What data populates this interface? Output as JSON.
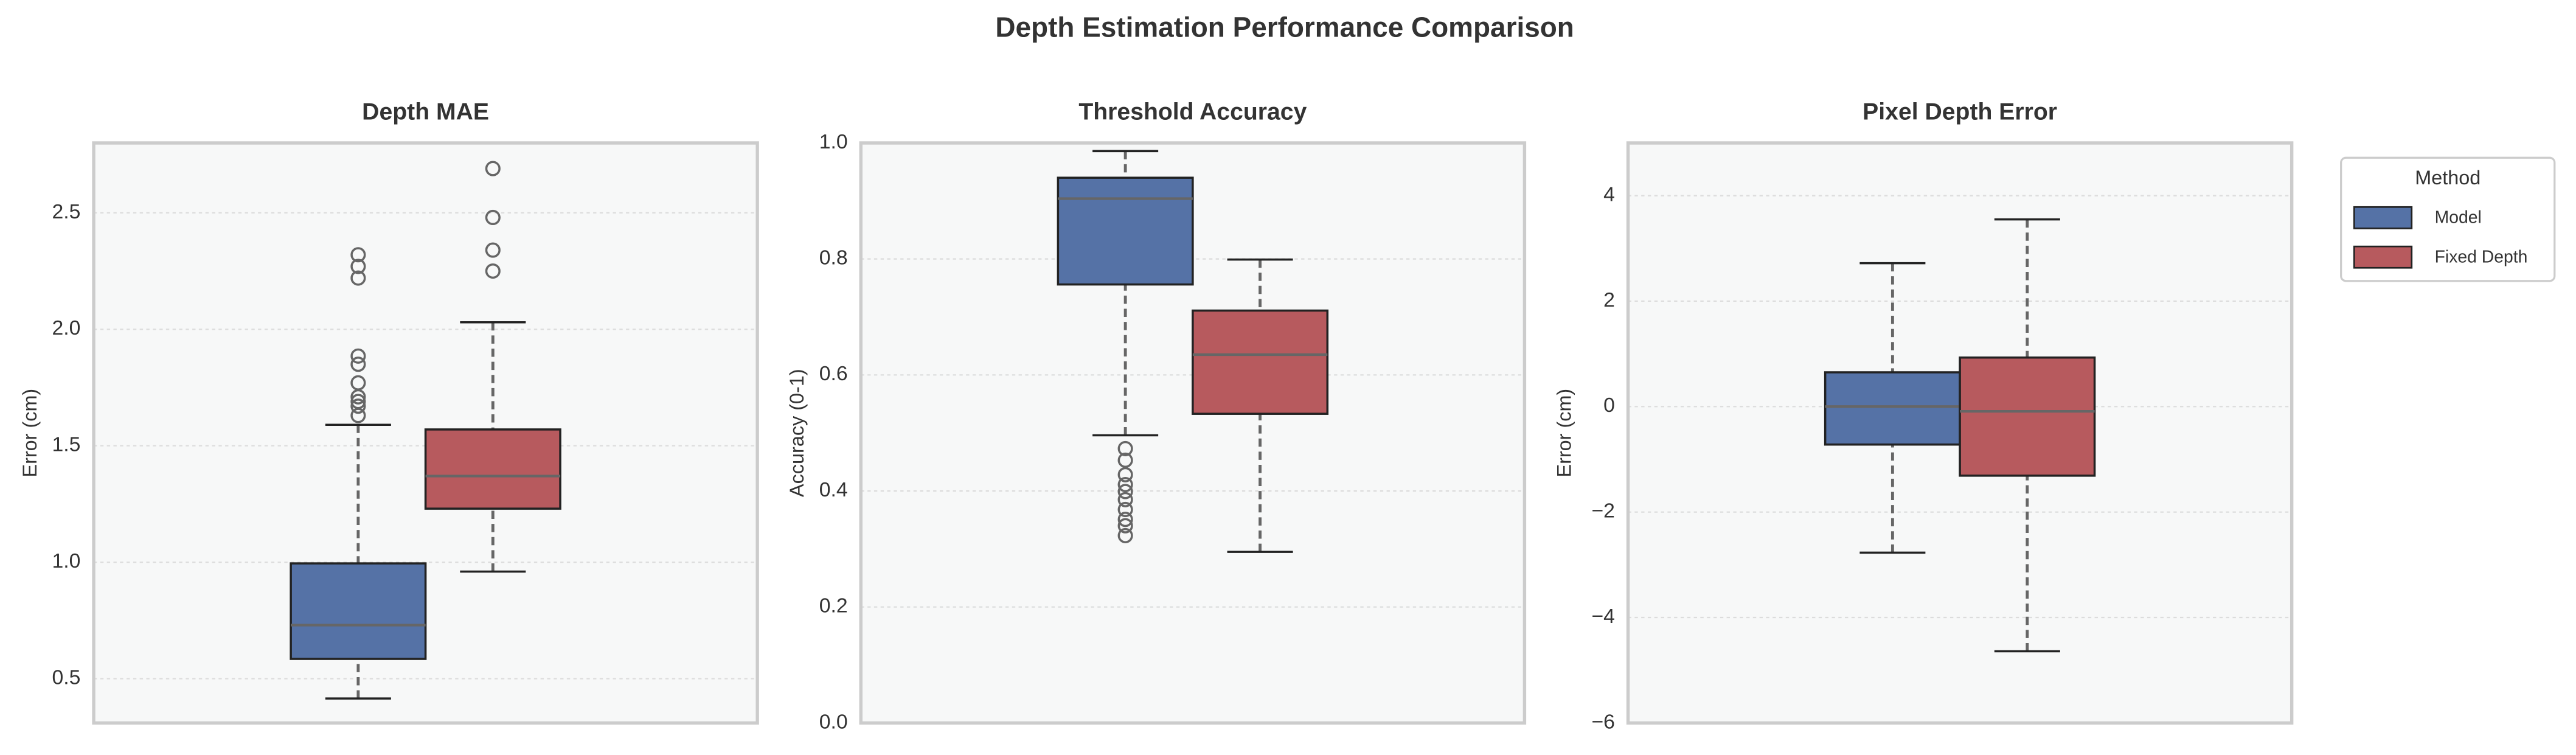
{
  "title": "Depth Estimation Performance Comparison",
  "legend": {
    "title": "Method",
    "corner": "outside-upper-right",
    "series": [
      {
        "name": "Model",
        "color": "#5572a6"
      },
      {
        "name": "Fixed Depth",
        "color": "#b75a5e"
      }
    ]
  },
  "chart_data": [
    {
      "type": "box",
      "title": "Depth MAE",
      "y_label": "Error (cm)",
      "ylim": [
        0.31,
        2.8
      ],
      "grid": true,
      "yticks": [
        0.5,
        {
          "value": 1,
          "label": "1.0"
        },
        1.5,
        {
          "value": 2,
          "label": "2.0"
        },
        2.5
      ],
      "boxes": [
        {
          "whisker_low": 0.415,
          "q1": 0.585,
          "median": 0.73,
          "q3": 0.995,
          "whisker_high": 1.59,
          "outliers": [
            1.63,
            1.67,
            1.69,
            1.71,
            1.77,
            1.85,
            1.885,
            2.22,
            2.27,
            2.32
          ]
        },
        {
          "whisker_low": 0.96,
          "q1": 1.23,
          "median": 1.37,
          "q3": 1.57,
          "whisker_high": 2.03,
          "outliers": [
            2.25,
            2.34,
            2.48,
            2.69
          ]
        }
      ]
    },
    {
      "type": "box",
      "title": "Threshold Accuracy",
      "y_label": "Accuracy (0-1)",
      "ylim": [
        0,
        1
      ],
      "grid": true,
      "yticks": [
        {
          "value": 0,
          "label": "0.0"
        },
        0.2,
        0.4,
        0.6,
        0.8,
        {
          "value": 1,
          "label": "1.0"
        }
      ],
      "boxes": [
        {
          "whisker_low": 0.496,
          "q1": 0.756,
          "median": 0.904,
          "q3": 0.94,
          "whisker_high": 0.986,
          "outliers": [
            0.473,
            0.453,
            0.428,
            0.411,
            0.399,
            0.385,
            0.368,
            0.351,
            0.34,
            0.323
          ]
        },
        {
          "whisker_low": 0.295,
          "q1": 0.533,
          "median": 0.635,
          "q3": 0.711,
          "whisker_high": 0.799,
          "outliers": []
        }
      ]
    },
    {
      "type": "box",
      "title": "Pixel Depth Error",
      "y_label": "Error (cm)",
      "ylim": [
        -6,
        5
      ],
      "grid": true,
      "yticks": [
        {
          "value": -6,
          "label": "−6"
        },
        {
          "value": -4,
          "label": "−4"
        },
        {
          "value": -2,
          "label": "−2"
        },
        0,
        2,
        4
      ],
      "boxes": [
        {
          "whisker_low": -2.77,
          "q1": -0.72,
          "median": 0,
          "q3": 0.65,
          "whisker_high": 2.72,
          "outliers": []
        },
        {
          "whisker_low": -4.64,
          "q1": -1.31,
          "median": -0.09,
          "q3": 0.93,
          "whisker_high": 3.55,
          "outliers": []
        }
      ]
    }
  ]
}
